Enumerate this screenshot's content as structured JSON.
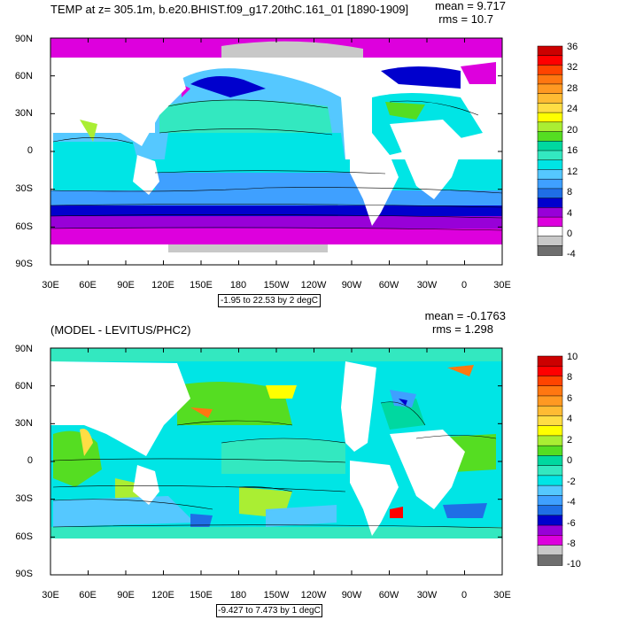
{
  "panels": [
    {
      "title": "TEMP at z= 305.1m, b.e20.BHIST.f09_g17.20thC.161_01 [1890-1909]",
      "mean_label": "mean = 9.717",
      "rms_label": "rms = 10.7",
      "range_label": "-1.95 to 22.53 by 2 degC",
      "lat_labels": [
        "90N",
        "60N",
        "30N",
        "0",
        "30S",
        "60S",
        "90S"
      ],
      "lon_labels": [
        "30E",
        "60E",
        "90E",
        "120E",
        "150E",
        "180",
        "150W",
        "120W",
        "90W",
        "60W",
        "30W",
        "0",
        "30E"
      ],
      "colorbar_labels": [
        "36",
        "32",
        "28",
        "24",
        "20",
        "16",
        "12",
        "8",
        "4",
        "0",
        "-4"
      ]
    },
    {
      "title": "(MODEL - LEVITUS/PHC2)",
      "mean_label": "mean = -0.1763",
      "rms_label": "rms = 1.298",
      "range_label": "-9.427 to 7.473 by 1 degC",
      "lat_labels": [
        "90N",
        "60N",
        "30N",
        "0",
        "30S",
        "60S",
        "90S"
      ],
      "lon_labels": [
        "30E",
        "60E",
        "90E",
        "120E",
        "150E",
        "180",
        "150W",
        "120W",
        "90W",
        "60W",
        "30W",
        "0",
        "30E"
      ],
      "colorbar_labels": [
        "10",
        "8",
        "6",
        "4",
        "2",
        "0",
        "-2",
        "-4",
        "-6",
        "-8",
        "-10"
      ]
    }
  ],
  "chart_data": [
    {
      "type": "heatmap",
      "title": "TEMP at z= 305.1m, b.e20.BHIST.f09_g17.20thC.161_01 [1890-1909]",
      "mean": 9.717,
      "rms": 10.7,
      "units": "degC",
      "contour_range": "-1.95 to 22.53 by 2 degC",
      "x_range": [
        "30E",
        "30E"
      ],
      "y_range": [
        "90S",
        "90N"
      ],
      "colorbar_levels": [
        -4,
        0,
        4,
        8,
        12,
        16,
        20,
        24,
        28,
        32,
        36
      ],
      "colorbar_colors": [
        "#6e6e6e",
        "#c8c8c8",
        "#ffffff",
        "#dd00dd",
        "#9800d8",
        "#0000cd",
        "#1f6fe6",
        "#3fa0ff",
        "#55c8ff",
        "#00e5e5",
        "#33e8c0",
        "#00d8a0",
        "#55dd22",
        "#aaee33",
        "#ffff00",
        "#ffdd44",
        "#ffbb33",
        "#ff9922",
        "#ff7711",
        "#ff4400",
        "#ff0000",
        "#cc0000"
      ]
    },
    {
      "type": "heatmap",
      "title": "(MODEL - LEVITUS/PHC2)",
      "mean": -0.1763,
      "rms": 1.298,
      "units": "degC",
      "contour_range": "-9.427 to 7.473 by 1 degC",
      "x_range": [
        "30E",
        "30E"
      ],
      "y_range": [
        "90S",
        "90N"
      ],
      "colorbar_levels": [
        -10,
        -8,
        -6,
        -4,
        -2,
        0,
        2,
        4,
        6,
        8,
        10
      ],
      "colorbar_colors": [
        "#6e6e6e",
        "#c8c8c8",
        "#dd00dd",
        "#9800d8",
        "#0000cd",
        "#1f6fe6",
        "#3fa0ff",
        "#55c8ff",
        "#00e5e5",
        "#33e8c0",
        "#00d8a0",
        "#55dd22",
        "#aaee33",
        "#ffff00",
        "#ffdd44",
        "#ffbb33",
        "#ff9922",
        "#ff7711",
        "#ff4400",
        "#ff0000",
        "#cc0000"
      ]
    }
  ]
}
